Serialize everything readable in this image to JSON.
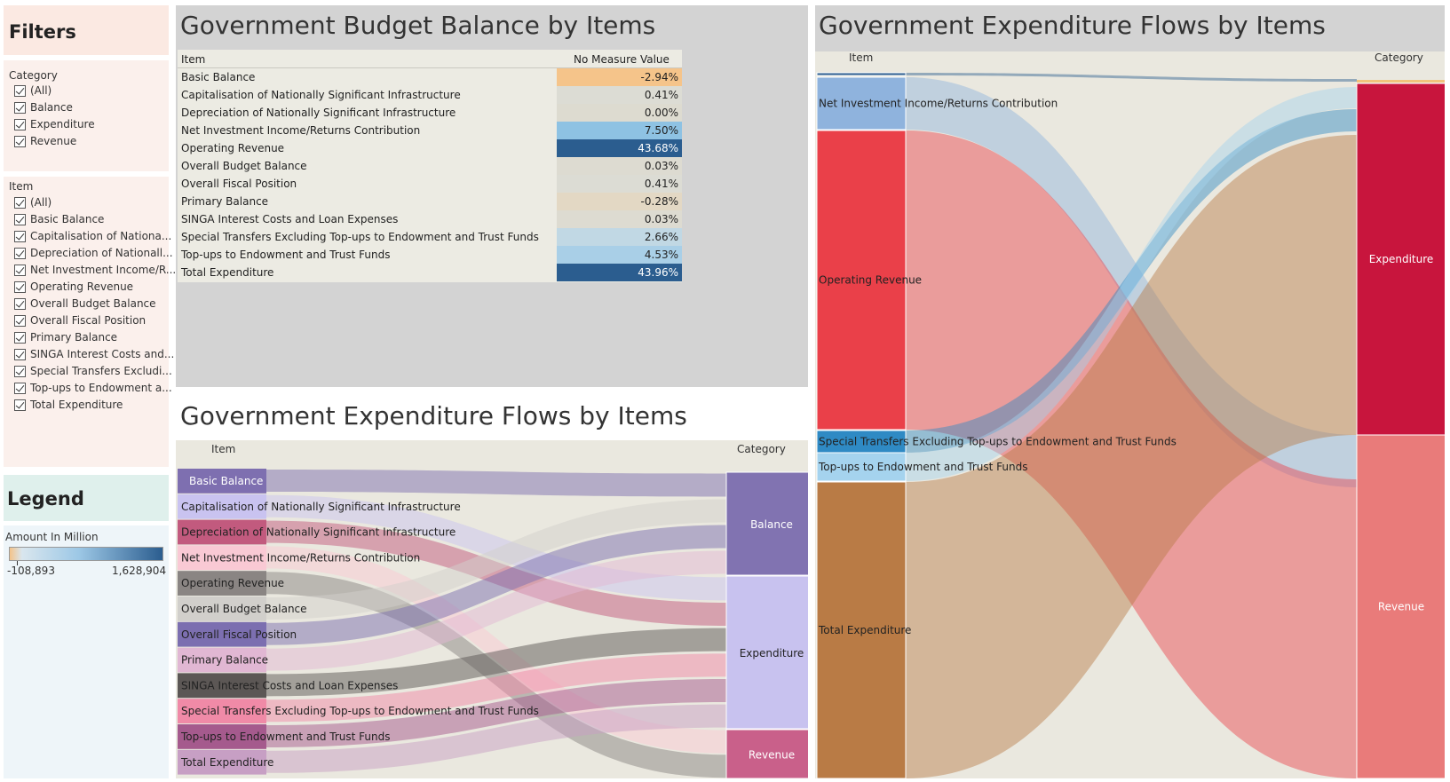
{
  "filters": {
    "title": "Filters",
    "category": {
      "label": "Category",
      "options": [
        "(All)",
        "Balance",
        "Expenditure",
        "Revenue"
      ]
    },
    "item": {
      "label": "Item",
      "options": [
        "(All)",
        "Basic Balance",
        "Capitalisation of Nationa...",
        "Depreciation of Nationall...",
        "Net Investment Income/R...",
        "Operating Revenue",
        "Overall Budget Balance",
        "Overall Fiscal Position",
        "Primary Balance",
        "SINGA Interest Costs and...",
        "Special Transfers Excludi...",
        "Top-ups to Endowment a...",
        "Total Expenditure"
      ]
    }
  },
  "legend": {
    "title": "Legend",
    "measure_label": "Amount In Million",
    "min_label": "-108,893",
    "max_label": "1,628,904",
    "colors": [
      "#f4c389",
      "#d9e6ee",
      "#9dc8e6",
      "#2b5d8f"
    ]
  },
  "budget_table": {
    "title": "Government Budget Balance by Items",
    "col_item": "Item",
    "col_value": "No Measure Value",
    "rows": [
      {
        "item": "Basic Balance",
        "value": "-2.94%",
        "color": "#f5c48a",
        "text_color": "#222"
      },
      {
        "item": "Capitalisation of Nationally Significant Infrastructure",
        "value": "0.41%",
        "color": "#dcdcd4",
        "text_color": "#222"
      },
      {
        "item": "Depreciation of Nationally Significant Infrastructure",
        "value": "0.00%",
        "color": "#dddbd0",
        "text_color": "#222"
      },
      {
        "item": "Net Investment Income/Returns Contribution",
        "value": "7.50%",
        "color": "#8ec2e3",
        "text_color": "#222"
      },
      {
        "item": "Operating Revenue",
        "value": "43.68%",
        "color": "#2b5d8f",
        "text_color": "#ffffff"
      },
      {
        "item": "Overall Budget Balance",
        "value": "0.03%",
        "color": "#dddbd1",
        "text_color": "#222"
      },
      {
        "item": "Overall Fiscal Position",
        "value": "0.41%",
        "color": "#dcdcd4",
        "text_color": "#222"
      },
      {
        "item": "Primary Balance",
        "value": "-0.28%",
        "color": "#e3d8c4",
        "text_color": "#222"
      },
      {
        "item": "SINGA Interest Costs and Loan Expenses",
        "value": "0.03%",
        "color": "#dddbd1",
        "text_color": "#222"
      },
      {
        "item": "Special Transfers Excluding Top-ups to Endowment and Trust Funds",
        "value": "2.66%",
        "color": "#c1d8e4",
        "text_color": "#222"
      },
      {
        "item": "Top-ups to Endowment and Trust Funds",
        "value": "4.53%",
        "color": "#a9cfe7",
        "text_color": "#222"
      },
      {
        "item": "Total Expenditure",
        "value": "43.96%",
        "color": "#2b5d8f",
        "text_color": "#ffffff"
      }
    ]
  },
  "sankey_small": {
    "title": "Government Expenditure Flows by Items",
    "col_item": "Item",
    "col_category": "Category",
    "items": [
      {
        "label": "Basic Balance",
        "color": "#7e6fb0",
        "text_color": "#ffffff",
        "target": "Balance"
      },
      {
        "label": "Capitalisation of Nationally Significant Infrastructure",
        "color": "#c9c3f0",
        "text_color": "#222",
        "target": "Expenditure"
      },
      {
        "label": "Depreciation of Nationally Significant Infrastructure",
        "color": "#c25a7e",
        "text_color": "#222",
        "target": "Expenditure"
      },
      {
        "label": "Net Investment Income/Returns Contribution",
        "color": "#f9c9d4",
        "text_color": "#222",
        "target": "Revenue"
      },
      {
        "label": "Operating Revenue",
        "color": "#8a8583",
        "text_color": "#222",
        "target": "Revenue"
      },
      {
        "label": "Overall Budget Balance",
        "color": "#d1cfcb",
        "text_color": "#222",
        "target": "Balance"
      },
      {
        "label": "Overall Fiscal Position",
        "color": "#7c6fb0",
        "text_color": "#222",
        "target": "Balance"
      },
      {
        "label": "Primary Balance",
        "color": "#e1b7d3",
        "text_color": "#222",
        "target": "Balance"
      },
      {
        "label": "SINGA Interest Costs and Loan Expenses",
        "color": "#5c5755",
        "text_color": "#222",
        "target": "Expenditure"
      },
      {
        "label": "Special Transfers Excluding Top-ups to Endowment and Trust Funds",
        "color": "#f08aa7",
        "text_color": "#222",
        "target": "Expenditure"
      },
      {
        "label": "Top-ups to Endowment and Trust Funds",
        "color": "#a55a8d",
        "text_color": "#222",
        "target": "Expenditure"
      },
      {
        "label": "Total Expenditure",
        "color": "#c79fc4",
        "text_color": "#222",
        "target": "Expenditure"
      }
    ],
    "categories": [
      {
        "label": "Balance",
        "color": "#8173b1"
      },
      {
        "label": "Expenditure",
        "color": "#c8c2ef"
      },
      {
        "label": "Revenue",
        "color": "#c9608a"
      }
    ]
  },
  "sankey_large": {
    "title": "Government Expenditure Flows by Items",
    "col_item": "Item",
    "col_category": "Category",
    "items": [
      {
        "label": "",
        "color": "#2b5d8f"
      },
      {
        "label": "Net Investment Income/Returns Contribution",
        "color": "#8fb3dd"
      },
      {
        "label": "Operating Revenue",
        "color": "#ea4049"
      },
      {
        "label": "Special Transfers Excluding Top-ups to Endowment and Trust Funds",
        "color": "#2f8ac4"
      },
      {
        "label": "Top-ups to Endowment and Trust Funds",
        "color": "#a5d3ee"
      },
      {
        "label": "Total Expenditure",
        "color": "#b97b45"
      }
    ],
    "categories": [
      {
        "label": "Expenditure",
        "color": "#c8153d"
      },
      {
        "label": "Revenue",
        "color": "#e97b7a"
      }
    ]
  }
}
